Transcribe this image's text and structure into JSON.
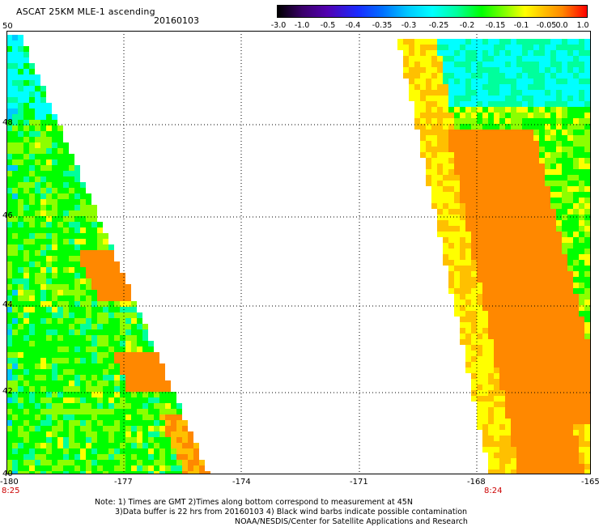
{
  "header": {
    "title": "ASCAT 25KM MLE-1 ascending",
    "date": "20160103"
  },
  "colorbar": {
    "labels": [
      "-3.0",
      "-1.0",
      "-0.5",
      "-0.4",
      "-0.35",
      "-0.3",
      "-0.25",
      "-0.2",
      "-0.15",
      "-0.1",
      "-0.05",
      "0.0",
      "1.0"
    ],
    "colors": [
      "#000000",
      "#5200b0",
      "#1a2bff",
      "#00c8ff",
      "#00ffff",
      "#00ff9c",
      "#00ff00",
      "#8cff00",
      "#ffff00",
      "#ffc000",
      "#ff8800",
      "#ff0000"
    ]
  },
  "map": {
    "lat_labels": [
      "50",
      "48",
      "46",
      "44",
      "42",
      "40"
    ],
    "lon_labels": [
      "-180",
      "-177",
      "-174",
      "-171",
      "-168",
      "-165"
    ],
    "pass_times": [
      "8:25",
      "8:24"
    ]
  },
  "notes": {
    "line1": "Note: 1) Times are GMT 2)Times along bottom correspond to measurement at 45N",
    "line2": "3)Data buffer is 22 hrs from 20160103 4) Black wind barbs indicate possible contamination",
    "line3": "NOAA/NESDIS/Center for Satellite Applications and Research"
  }
}
